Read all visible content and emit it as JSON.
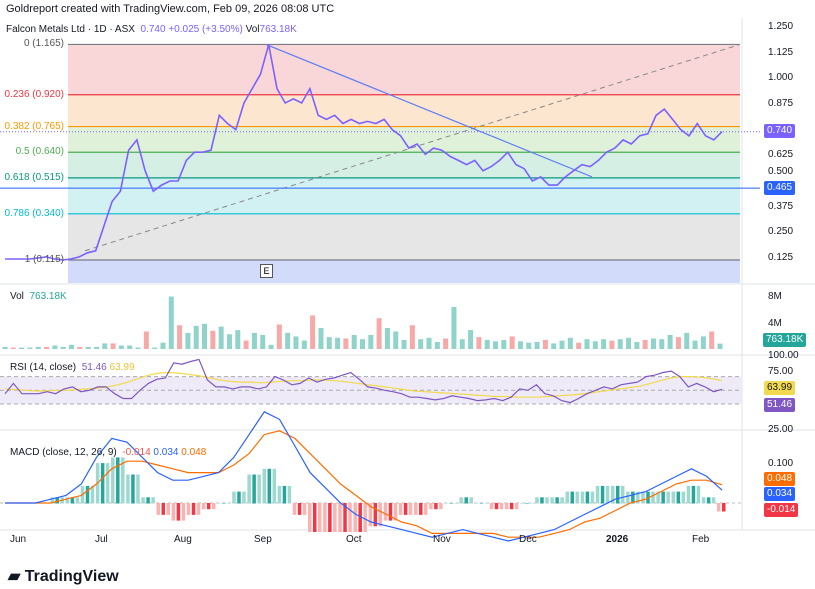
{
  "header": "Goldreport created with TradingView.com, Feb 09, 2026 08:08 UTC",
  "legend": {
    "symbol": "Falcon Metals Ltd · 1D · ASX",
    "price": "0.740",
    "change": "+0.025 (+3.50%)",
    "vol_label": "Vol",
    "vol": "763.18K"
  },
  "colors": {
    "price": "#7b61ff",
    "up": "#26a69a",
    "down": "#ef5350",
    "rsi": "#7e57c2",
    "rsi_ma": "#f2d94e",
    "macd": "#2962ff",
    "signal": "#ff6d00"
  },
  "fib_levels": [
    {
      "label": "0 (1.165)",
      "ratio": 0,
      "price": 1.165,
      "color": "#787b86",
      "fill": "#f9d7d9"
    },
    {
      "label": "0.236 (0.920)",
      "ratio": 0.236,
      "price": 0.92,
      "color": "#f23645",
      "fill": "#fde6cf"
    },
    {
      "label": "0.382 (0.765)",
      "ratio": 0.382,
      "price": 0.765,
      "color": "#ff9800",
      "fill": "#dff1d9"
    },
    {
      "label": "0.5 (0.640)",
      "ratio": 0.5,
      "price": 0.64,
      "color": "#4caf50",
      "fill": "#d6efe4"
    },
    {
      "label": "0.618 (0.515)",
      "ratio": 0.618,
      "price": 0.515,
      "color": "#089981",
      "fill": "#d2f1f3"
    },
    {
      "label": "0.786 (0.340)",
      "ratio": 0.786,
      "price": 0.34,
      "color": "#00bcd4",
      "fill": "#e6e6e6"
    },
    {
      "label": "1 (0.115)",
      "ratio": 1,
      "price": 0.115,
      "color": "#787b86",
      "fill": "#d2dcfa"
    }
  ],
  "price_axis": [
    "1.250",
    "1.125",
    "1.000",
    "0.875",
    "0.625",
    "0.500",
    "0.375",
    "0.250",
    "0.125"
  ],
  "price_tags": {
    "last": "0.740",
    "hline": "0.465"
  },
  "earnings_marker": "E",
  "volume": {
    "label": "Vol",
    "value": "763.18K",
    "axis": [
      "8M",
      "4M"
    ],
    "tag": "763.18K"
  },
  "rsi": {
    "label": "RSI (14, close)",
    "value": "51.46",
    "ma": "63.99",
    "axis": [
      "100.00",
      "75.00",
      "25.00"
    ]
  },
  "macd": {
    "label": "MACD (close, 12, 26, 9)",
    "hist": "-0.014",
    "macd": "0.034",
    "signal": "0.048",
    "axis": [
      "0.100"
    ]
  },
  "time_axis": [
    "Jun",
    "Jul",
    "Aug",
    "Sep",
    "Oct",
    "Nov",
    "Dec",
    "2026",
    "Feb"
  ],
  "logo": "TradingView",
  "chart_data": {
    "type": "line",
    "title": "Falcon Metals Ltd · 1D · ASX",
    "ylim": [
      0.1,
      1.27
    ],
    "prices": [
      0.12,
      0.12,
      0.12,
      0.12,
      0.125,
      0.13,
      0.12,
      0.115,
      0.12,
      0.13,
      0.15,
      0.16,
      0.28,
      0.4,
      0.45,
      0.65,
      0.7,
      0.55,
      0.45,
      0.48,
      0.5,
      0.5,
      0.6,
      0.64,
      0.64,
      0.65,
      0.82,
      0.78,
      0.75,
      0.88,
      0.95,
      1.02,
      1.165,
      0.95,
      0.88,
      0.9,
      0.88,
      0.95,
      0.82,
      0.8,
      0.82,
      0.78,
      0.8,
      0.78,
      0.79,
      0.78,
      0.8,
      0.75,
      0.72,
      0.66,
      0.68,
      0.63,
      0.66,
      0.65,
      0.62,
      0.6,
      0.58,
      0.6,
      0.55,
      0.57,
      0.6,
      0.64,
      0.58,
      0.56,
      0.5,
      0.52,
      0.48,
      0.48,
      0.52,
      0.55,
      0.58,
      0.57,
      0.6,
      0.64,
      0.66,
      0.7,
      0.68,
      0.72,
      0.73,
      0.82,
      0.85,
      0.8,
      0.75,
      0.72,
      0.78,
      0.72,
      0.7,
      0.74
    ],
    "volume_m": [
      0.3,
      0.2,
      0.2,
      0.2,
      0.3,
      0.3,
      0.5,
      0.3,
      0.6,
      0.3,
      0.3,
      0.3,
      0.8,
      0.8,
      0.5,
      0.5,
      0.2,
      2.5,
      0.2,
      0.9,
      7.5,
      3.4,
      2.3,
      3.3,
      3.6,
      2.6,
      3.2,
      2.1,
      2.7,
      1.2,
      2.3,
      2.0,
      0.6,
      3.5,
      2.3,
      1.8,
      1.2,
      4.8,
      3.0,
      1.7,
      1.6,
      1.5,
      2.0,
      1.4,
      2.0,
      4.4,
      3.0,
      2.5,
      1.3,
      3.4,
      1.4,
      1.6,
      1.0,
      1.5,
      6.0,
      1.4,
      2.7,
      1.7,
      1.3,
      1.1,
      1.3,
      1.8,
      1.1,
      0.9,
      1.0,
      1.3,
      0.8,
      1.2,
      1.6,
      0.9,
      1.4,
      1.1,
      1.4,
      1.2,
      1.4,
      1.6,
      1.0,
      1.3,
      1.5,
      1.4,
      2.0,
      1.7,
      2.3,
      1.2,
      1.8,
      2.5,
      0.76
    ],
    "rsi": [
      45,
      60,
      45,
      45,
      45,
      48,
      45,
      52,
      55,
      48,
      50,
      55,
      55,
      45,
      38,
      38,
      50,
      60,
      66,
      68,
      90,
      88,
      92,
      95,
      65,
      55,
      55,
      52,
      55,
      55,
      52,
      55,
      70,
      65,
      58,
      60,
      68,
      62,
      66,
      68,
      72,
      76,
      66,
      55,
      53,
      50,
      48,
      45,
      40,
      40,
      38,
      36,
      38,
      42,
      40,
      38,
      35,
      36,
      38,
      35,
      40,
      52,
      50,
      58,
      45,
      42,
      35,
      32,
      38,
      45,
      50,
      55,
      52,
      58,
      60,
      62,
      70,
      72,
      76,
      78,
      70,
      55,
      60,
      55,
      48,
      51.46
    ],
    "rsi_ma": [
      52,
      51,
      50,
      49,
      49,
      50,
      50,
      51,
      52,
      53,
      55,
      58,
      62,
      67,
      72,
      75,
      76,
      75,
      73,
      71,
      68,
      65,
      63,
      62,
      62,
      61,
      62,
      63,
      64,
      64,
      65,
      65,
      64,
      63,
      61,
      59,
      57,
      55,
      53,
      51,
      49,
      48,
      47,
      46,
      45,
      44,
      43,
      42,
      41,
      41,
      40,
      40,
      40,
      41,
      42,
      43,
      44,
      46,
      48,
      50,
      52,
      54,
      56,
      60,
      64,
      68,
      70,
      70,
      69,
      67,
      63.99
    ],
    "macd": [
      0.0,
      0.0,
      0.0,
      0.01,
      0.02,
      0.05,
      0.12,
      0.17,
      0.16,
      0.12,
      0.08,
      0.06,
      0.06,
      0.07,
      0.08,
      0.12,
      0.18,
      0.24,
      0.22,
      0.15,
      0.08,
      0.04,
      0.0,
      -0.03,
      -0.05,
      -0.06,
      -0.07,
      -0.08,
      -0.09,
      -0.08,
      -0.07,
      -0.08,
      -0.09,
      -0.1,
      -0.09,
      -0.08,
      -0.07,
      -0.05,
      -0.03,
      -0.01,
      0.01,
      0.02,
      0.03,
      0.05,
      0.07,
      0.09,
      0.07,
      0.034
    ],
    "signal": [
      0.0,
      0.0,
      0.0,
      0.0,
      0.01,
      0.02,
      0.05,
      0.09,
      0.11,
      0.11,
      0.1,
      0.09,
      0.08,
      0.08,
      0.08,
      0.1,
      0.13,
      0.18,
      0.19,
      0.17,
      0.13,
      0.09,
      0.05,
      0.02,
      -0.01,
      -0.03,
      -0.05,
      -0.06,
      -0.08,
      -0.08,
      -0.08,
      -0.08,
      -0.08,
      -0.09,
      -0.09,
      -0.09,
      -0.08,
      -0.07,
      -0.05,
      -0.04,
      -0.02,
      0.0,
      0.01,
      0.03,
      0.05,
      0.06,
      0.06,
      0.048
    ]
  }
}
